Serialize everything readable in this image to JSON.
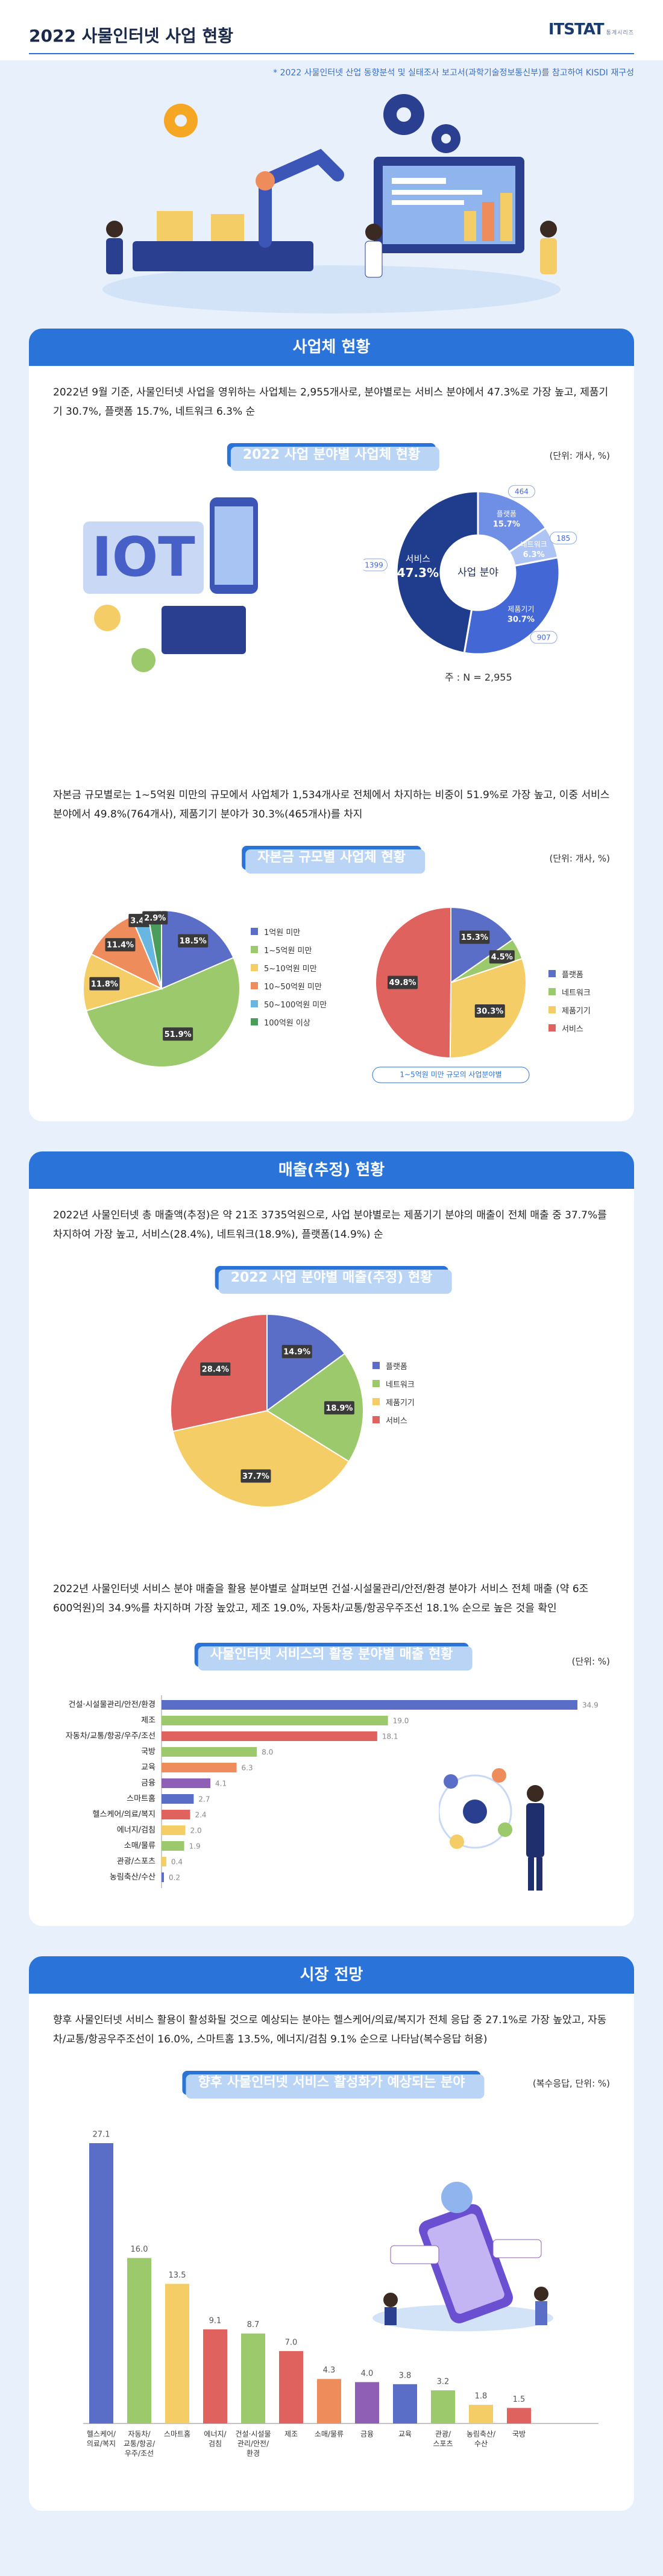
{
  "header": {
    "title": "2022 사물인터넷 사업 현황",
    "logo": "ITSTAT",
    "logo_sub": "통계시리즈",
    "source": "* 2022 사물인터넷 산업 동향분석 및 실태조사 보고서(과학기술정보통신부)를 참고하여 KISDI 재구성"
  },
  "colors": {
    "blue": "#5b6ec7",
    "green": "#9cc96b",
    "yellow": "#f5cd66",
    "red": "#e0625f",
    "navy": "#1f3d8c",
    "accent": "#2a73d9"
  },
  "section1": {
    "title": "사업체 현황",
    "para1": "2022년 9월 기준, 사물인터넷 사업을 영위하는 사업체는 2,955개사로, 분야별로는 서비스 분야에서 47.3%로 가장 높고, 제품기기 30.7%, 플랫폼 15.7%, 네트워크 6.3% 순",
    "chart1_title": "2022 사업 분야별 사업체 현황",
    "unit1": "(단위: 개사, %)",
    "note1": "주 : N = 2,955",
    "para2": "자본금 규모별로는 1~5억원 미만의 규모에서 사업체가 1,534개사로 전체에서 차지하는 비중이 51.9%로 가장 높고, 이중 서비스 분야에서 49.8%(764개사), 제품기기 분야가 30.3%(465개사)를 차지",
    "chart2_title": "자본금 규모별 사업체 현황",
    "unit2": "(단위: 개사, %)",
    "sub_note": "1~5억원 미만 규모의 사업분야별"
  },
  "section2": {
    "title": "매출(추정) 현황",
    "para1": "2022년 사물인터넷 총 매출액(추정)은 약 21조 3735억원으로, 사업 분야별로는 제품기기 분야의 매출이 전체 매출 중 37.7%를 차지하여 가장 높고, 서비스(28.4%), 네트워크(18.9%), 플랫폼(14.9%) 순",
    "chart1_title": "2022 사업 분야별 매출(추정) 현황",
    "para2": "2022년 사물인터넷 서비스 분야 매출을 활용 분야별로 살펴보면 건설·시설물관리/안전/환경 분야가 서비스 전체 매출 (약 6조 600억원)의 34.9%를 차지하며 가장 높았고, 제조 19.0%, 자동차/교통/항공우주조선 18.1% 순으로 높은 것을 확인",
    "chart2_title": "사물인터넷 서비스의 활용 분야별 매출 현황",
    "unit2": "(단위: %)"
  },
  "section3": {
    "title": "시장 전망",
    "para1": "향후 사물인터넷 서비스 활용이 활성화될 것으로 예상되는 분야는 헬스케어/의료/복지가 전체 응답 중 27.1%로 가장 높았고, 자동차/교통/항공우주조선이 16.0%, 스마트홈 13.5%, 에너지/검침 9.1% 순으로 나타남(복수응답 허용)",
    "chart1_title": "향후 사물인터넷 서비스 활성화가 예상되는 분야",
    "unit1": "(복수응답, 단위: %)"
  },
  "chart_data": [
    {
      "id": "donut-business-field",
      "type": "pie",
      "title": "2022 사업 분야별 사업체 현황",
      "center_label": "사업 분야",
      "slices": [
        {
          "name": "플랫폼",
          "pct": "15.7%",
          "value": 15.7,
          "count": "464"
        },
        {
          "name": "네트워크",
          "pct": "6.3%",
          "value": 6.3,
          "count": "185"
        },
        {
          "name": "제품기기",
          "pct": "30.7%",
          "value": 30.7,
          "count": "907"
        },
        {
          "name": "서비스",
          "pct": "47.3%",
          "value": 47.3,
          "count": "1399"
        }
      ]
    },
    {
      "id": "pie-capital-size",
      "type": "pie",
      "title": "자본금 규모별 사업체 현황",
      "slices": [
        {
          "name": "1억원 미만",
          "value": 18.5,
          "label": "18.5%"
        },
        {
          "name": "1~5억원 미만",
          "value": 51.9,
          "label": "51.9%"
        },
        {
          "name": "5~10억원 미만",
          "value": 11.8,
          "label": "11.8%"
        },
        {
          "name": "10~50억원 미만",
          "value": 11.4,
          "label": "11.4%"
        },
        {
          "name": "50~100억원 미만",
          "value": 3.4,
          "label": "3.4%"
        },
        {
          "name": "100억원 이상",
          "value": 2.9,
          "label": "2.9%"
        }
      ]
    },
    {
      "id": "pie-capital-1to5",
      "type": "pie",
      "title": "1~5억원 미만 규모의 사업분야별",
      "slices": [
        {
          "name": "플랫폼",
          "value": 15.3,
          "label": "15.3%"
        },
        {
          "name": "네트워크",
          "value": 4.5,
          "label": "4.5%"
        },
        {
          "name": "제품기기",
          "value": 30.3,
          "label": "30.3%"
        },
        {
          "name": "서비스",
          "value": 49.8,
          "label": "49.8%"
        }
      ]
    },
    {
      "id": "pie-sales-field",
      "type": "pie",
      "title": "2022 사업 분야별 매출(추정) 현황",
      "slices": [
        {
          "name": "플랫폼",
          "value": 14.9,
          "label": "14.9%"
        },
        {
          "name": "네트워크",
          "value": 18.9,
          "label": "18.9%"
        },
        {
          "name": "제품기기",
          "value": 37.7,
          "label": "37.7%"
        },
        {
          "name": "서비스",
          "value": 28.4,
          "label": "28.4%"
        }
      ]
    },
    {
      "id": "hbar-service-sales",
      "type": "bar",
      "orientation": "horizontal",
      "title": "사물인터넷 서비스의 활용 분야별 매출 현황",
      "unit": "(단위: %)",
      "categories": [
        "건설·시설물관리/안전/환경",
        "제조",
        "자동차/교통/항공/우주/조선",
        "국방",
        "교육",
        "금융",
        "스마트홈",
        "헬스케어/의료/복지",
        "에너지/검침",
        "소매/물류",
        "관광/스포츠",
        "농림축산/수산"
      ],
      "values": [
        34.9,
        19.0,
        18.1,
        8.0,
        6.3,
        4.1,
        2.7,
        2.4,
        2.0,
        1.9,
        0.4,
        0.2
      ],
      "labels": [
        "34.9",
        "19.0",
        "18.1",
        "8.0",
        "6.3",
        "4.1",
        "2.7",
        "2.4",
        "2.0",
        "1.9",
        "0.4",
        "0.2"
      ],
      "colors": [
        "#5b6ec7",
        "#9cc96b",
        "#e0625f",
        "#9cc96b",
        "#ef8c5c",
        "#8e5fb5",
        "#5b6ec7",
        "#e0625f",
        "#f5cd66",
        "#9cc96b",
        "#f5cd66",
        "#5b6ec7"
      ]
    },
    {
      "id": "vbar-future-fields",
      "type": "bar",
      "orientation": "vertical",
      "title": "향후 사물인터넷 서비스 활성화가 예상되는 분야",
      "unit": "(복수응답, 단위: %)",
      "categories": [
        [
          "헬스케어/",
          "의료/복지"
        ],
        [
          "자동차/",
          "교통/항공/",
          "우주/조선"
        ],
        [
          "스마트홈"
        ],
        [
          "에너지/",
          "검침"
        ],
        [
          "건설·시설물",
          "관리/안전/",
          "환경"
        ],
        [
          "제조"
        ],
        [
          "소매/물류"
        ],
        [
          "금융"
        ],
        [
          "교육"
        ],
        [
          "관광/",
          "스포츠"
        ],
        [
          "농림축산/",
          "수산"
        ],
        [
          "국방"
        ]
      ],
      "values": [
        27.1,
        16.0,
        13.5,
        9.1,
        8.7,
        7.0,
        4.3,
        4.0,
        3.8,
        3.2,
        1.8,
        1.5
      ],
      "labels": [
        "27.1",
        "16.0",
        "13.5",
        "9.1",
        "8.7",
        "7.0",
        "4.3",
        "4.0",
        "3.8",
        "3.2",
        "1.8",
        "1.5"
      ],
      "colors": [
        "#5b6ec7",
        "#9cc96b",
        "#f5cd66",
        "#e0625f",
        "#9cc96b",
        "#e0625f",
        "#ef8c5c",
        "#8e5fb5",
        "#5b6ec7",
        "#9cc96b",
        "#f5cd66",
        "#e0625f"
      ]
    }
  ]
}
